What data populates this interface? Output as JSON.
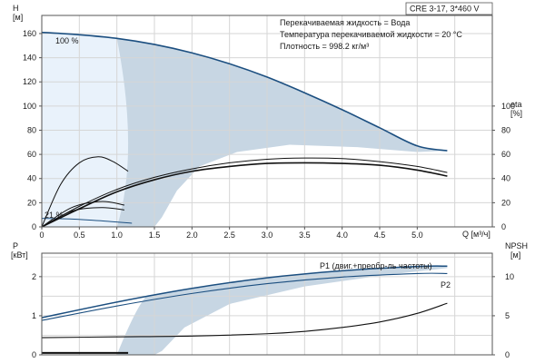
{
  "chart_data": [
    {
      "type": "line",
      "panel": "head-efficiency",
      "model_label": "CRE 3-17, 3*460 V",
      "info_lines": [
        "Перекачиваемая жидкость = Вода",
        "Температура перекачиваемой жидкости = 20 °C",
        "Плотность = 998.2 кг/м³"
      ],
      "left_axis": {
        "title": "H",
        "unit": "[м]",
        "range": [
          0,
          175
        ],
        "ticks": [
          "0",
          "20",
          "40",
          "60",
          "80",
          "100",
          "120",
          "140",
          "160"
        ]
      },
      "right_axis": {
        "title": "eta",
        "unit": "[%]",
        "range": [
          0,
          175
        ],
        "ticks": [
          "0",
          "20",
          "40",
          "60",
          "80",
          "100"
        ]
      },
      "x_axis": {
        "title": "Q [м³/ч]",
        "range": [
          0,
          6
        ],
        "ticks": [
          "0",
          "0.5",
          "1.0",
          "1.5",
          "2.0",
          "2.5",
          "3.0",
          "3.5",
          "4.0",
          "4.5",
          "5.0"
        ]
      },
      "annotations": [
        {
          "text": "100 %",
          "x": 0.2,
          "y": 163
        },
        {
          "text": "21 %",
          "x": 0.05,
          "y": 11
        }
      ],
      "colors": {
        "curve": "#1c4f80",
        "region": "#c7d6e3",
        "light_region": "#e9f2fb",
        "efficiency": "#111111"
      },
      "series": [
        {
          "id": "head-100",
          "x": [
            0,
            0.5,
            1.0,
            1.5,
            2.0,
            2.5,
            3.0,
            3.5,
            4.0,
            4.5,
            5.0,
            5.4
          ],
          "y": [
            161,
            159,
            156,
            151,
            144,
            135,
            124,
            111,
            97,
            82,
            67,
            63
          ]
        },
        {
          "id": "head-21",
          "x": [
            0,
            0.4,
            0.8,
            1.2
          ],
          "y": [
            7,
            6.5,
            5,
            3
          ]
        },
        {
          "id": "eta-upper",
          "x": [
            0,
            0.5,
            1.0,
            1.5,
            2.0,
            2.5,
            3.0,
            3.5,
            4.0,
            4.5,
            5.0,
            5.4
          ],
          "y": [
            0,
            17,
            31,
            41,
            48,
            53,
            56,
            57,
            56.5,
            54,
            50,
            45
          ]
        },
        {
          "id": "eta-lower",
          "x": [
            0,
            0.5,
            1.0,
            1.5,
            2.0,
            2.5,
            3.0,
            3.5,
            4.0,
            4.5,
            5.0,
            5.4
          ],
          "y": [
            0,
            15,
            29,
            39,
            46,
            50,
            52.5,
            53,
            52.5,
            51,
            47,
            42
          ]
        },
        {
          "id": "eta-small-high",
          "x": [
            0,
            0.25,
            0.5,
            0.75,
            0.95,
            1.15
          ],
          "y": [
            0,
            35,
            53,
            58,
            54,
            46
          ]
        },
        {
          "id": "eta-small-mid",
          "x": [
            0,
            0.4,
            0.8,
            1.1
          ],
          "y": [
            0,
            16,
            21,
            18
          ]
        },
        {
          "id": "eta-small-low",
          "x": [
            0,
            0.4,
            0.8,
            1.1
          ],
          "y": [
            0,
            13,
            16,
            14
          ]
        }
      ]
    },
    {
      "type": "line",
      "panel": "power-npsh",
      "left_axis": {
        "title": "P",
        "unit": "[кВт]",
        "range": [
          0,
          2.6
        ],
        "ticks": [
          "0",
          "1",
          "2"
        ]
      },
      "right_axis": {
        "title": "NPSH",
        "unit": "[м]",
        "range": [
          0,
          13
        ],
        "ticks": [
          "0",
          "5",
          "10"
        ]
      },
      "x_axis": {
        "range": [
          0,
          6
        ]
      },
      "labels": [
        {
          "text": "P1 (двиг.+преобр-ль частоты)",
          "x": 3.75,
          "y": 2.28
        },
        {
          "text": "P2",
          "x": 5.3,
          "y": 1.88
        }
      ],
      "colors": {
        "curve": "#1c4f80",
        "region": "#c7d6e3",
        "npsh": "#111111"
      },
      "series": [
        {
          "id": "P1",
          "x": [
            0,
            1.0,
            2.0,
            3.0,
            4.0,
            5.0,
            5.4
          ],
          "y": [
            0.95,
            1.35,
            1.7,
            1.97,
            2.15,
            2.26,
            2.27
          ]
        },
        {
          "id": "P2",
          "x": [
            0,
            1.0,
            2.0,
            3.0,
            4.0,
            5.0,
            5.4
          ],
          "y": [
            0.88,
            1.25,
            1.57,
            1.82,
            1.99,
            2.08,
            2.08
          ]
        },
        {
          "id": "NPSH",
          "x": [
            0,
            1.0,
            2.0,
            3.0,
            3.5,
            4.0,
            4.5,
            5.0,
            5.4
          ],
          "y": [
            2.2,
            2.3,
            2.4,
            2.7,
            3.0,
            3.5,
            4.2,
            5.3,
            6.6
          ]
        },
        {
          "id": "P-low",
          "x": [
            0,
            1.15
          ],
          "y": [
            0.05,
            0.05
          ]
        }
      ]
    }
  ]
}
